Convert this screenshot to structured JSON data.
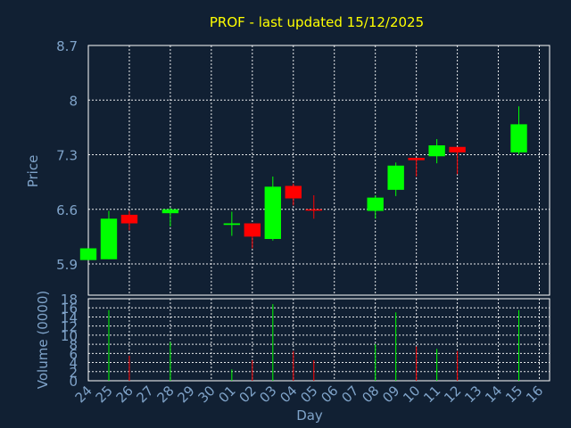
{
  "chart_data": [
    {
      "type": "candlestick",
      "title": "PROF - last updated 15/12/2025",
      "ylabel": "Price",
      "ylim": [
        5.5,
        8.7
      ],
      "yticks": [
        "8.7",
        "8",
        "7.3",
        "6.6",
        "5.9"
      ],
      "ytick_values": [
        8.7,
        8.0,
        7.3,
        6.6,
        5.9
      ],
      "grid": true,
      "categories": [
        "24",
        "25",
        "26",
        "27",
        "28",
        "29",
        "30",
        "01",
        "02",
        "03",
        "04",
        "05",
        "06",
        "07",
        "08",
        "09",
        "10",
        "11",
        "12",
        "13",
        "14",
        "15",
        "16"
      ],
      "candles": [
        {
          "day": "24",
          "open": 5.95,
          "high": 6.1,
          "low": 5.95,
          "close": 6.1
        },
        {
          "day": "25",
          "open": 5.96,
          "high": 6.58,
          "low": 5.96,
          "close": 6.48
        },
        {
          "day": "26",
          "open": 6.53,
          "high": 6.58,
          "low": 6.33,
          "close": 6.42
        },
        {
          "day": "28",
          "open": 6.55,
          "high": 6.62,
          "low": 6.38,
          "close": 6.6
        },
        {
          "day": "01",
          "open": 6.4,
          "high": 6.57,
          "low": 6.26,
          "close": 6.42
        },
        {
          "day": "02",
          "open": 6.42,
          "high": 6.42,
          "low": 6.1,
          "close": 6.25
        },
        {
          "day": "03",
          "open": 6.22,
          "high": 7.02,
          "low": 6.2,
          "close": 6.89
        },
        {
          "day": "04",
          "open": 6.9,
          "high": 6.93,
          "low": 6.65,
          "close": 6.74
        },
        {
          "day": "05",
          "open": 6.6,
          "high": 6.78,
          "low": 6.48,
          "close": 6.59
        },
        {
          "day": "08",
          "open": 6.58,
          "high": 6.78,
          "low": 6.48,
          "close": 6.75
        },
        {
          "day": "09",
          "open": 6.85,
          "high": 7.2,
          "low": 6.77,
          "close": 7.16
        },
        {
          "day": "10",
          "open": 7.26,
          "high": 7.26,
          "low": 7.02,
          "close": 7.23
        },
        {
          "day": "11",
          "open": 7.28,
          "high": 7.5,
          "low": 7.19,
          "close": 7.42
        },
        {
          "day": "12",
          "open": 7.4,
          "high": 7.4,
          "low": 7.05,
          "close": 7.33
        },
        {
          "day": "15",
          "open": 7.33,
          "high": 7.92,
          "low": 7.3,
          "close": 7.69
        }
      ],
      "colors": {
        "up": "#00ff00",
        "down": "#ff0000",
        "title": "#ffff00",
        "axis_text": "#7fa3c9",
        "grid": "#ffffff",
        "background": "#112033"
      }
    },
    {
      "type": "bar",
      "ylabel": "Volume (0000)",
      "xlabel": "Day",
      "ylim": [
        0,
        18
      ],
      "yticks": [
        "18",
        "16",
        "14",
        "12",
        "10",
        "8",
        "6",
        "4",
        "2",
        "0"
      ],
      "ytick_values": [
        18,
        16,
        14,
        12,
        10,
        8,
        6,
        4,
        2,
        0
      ],
      "grid": true,
      "categories": [
        "24",
        "25",
        "26",
        "27",
        "28",
        "29",
        "30",
        "01",
        "02",
        "03",
        "04",
        "05",
        "06",
        "07",
        "08",
        "09",
        "10",
        "11",
        "12",
        "13",
        "14",
        "15",
        "16"
      ],
      "volumes": [
        {
          "day": "25",
          "value": 15.5,
          "color": "#00ff00"
        },
        {
          "day": "26",
          "value": 5.5,
          "color": "#ff0000"
        },
        {
          "day": "28",
          "value": 8.5,
          "color": "#00ff00"
        },
        {
          "day": "01",
          "value": 2.5,
          "color": "#00ff00"
        },
        {
          "day": "02",
          "value": 4.5,
          "color": "#ff0000"
        },
        {
          "day": "03",
          "value": 16.8,
          "color": "#00ff00"
        },
        {
          "day": "04",
          "value": 6.5,
          "color": "#ff0000"
        },
        {
          "day": "05",
          "value": 4.5,
          "color": "#ff0000"
        },
        {
          "day": "08",
          "value": 8.0,
          "color": "#00ff00"
        },
        {
          "day": "09",
          "value": 15.0,
          "color": "#00ff00"
        },
        {
          "day": "10",
          "value": 7.5,
          "color": "#ff0000"
        },
        {
          "day": "11",
          "value": 7.0,
          "color": "#00ff00"
        },
        {
          "day": "12",
          "value": 6.5,
          "color": "#ff0000"
        },
        {
          "day": "15",
          "value": 15.5,
          "color": "#00ff00"
        }
      ]
    }
  ]
}
